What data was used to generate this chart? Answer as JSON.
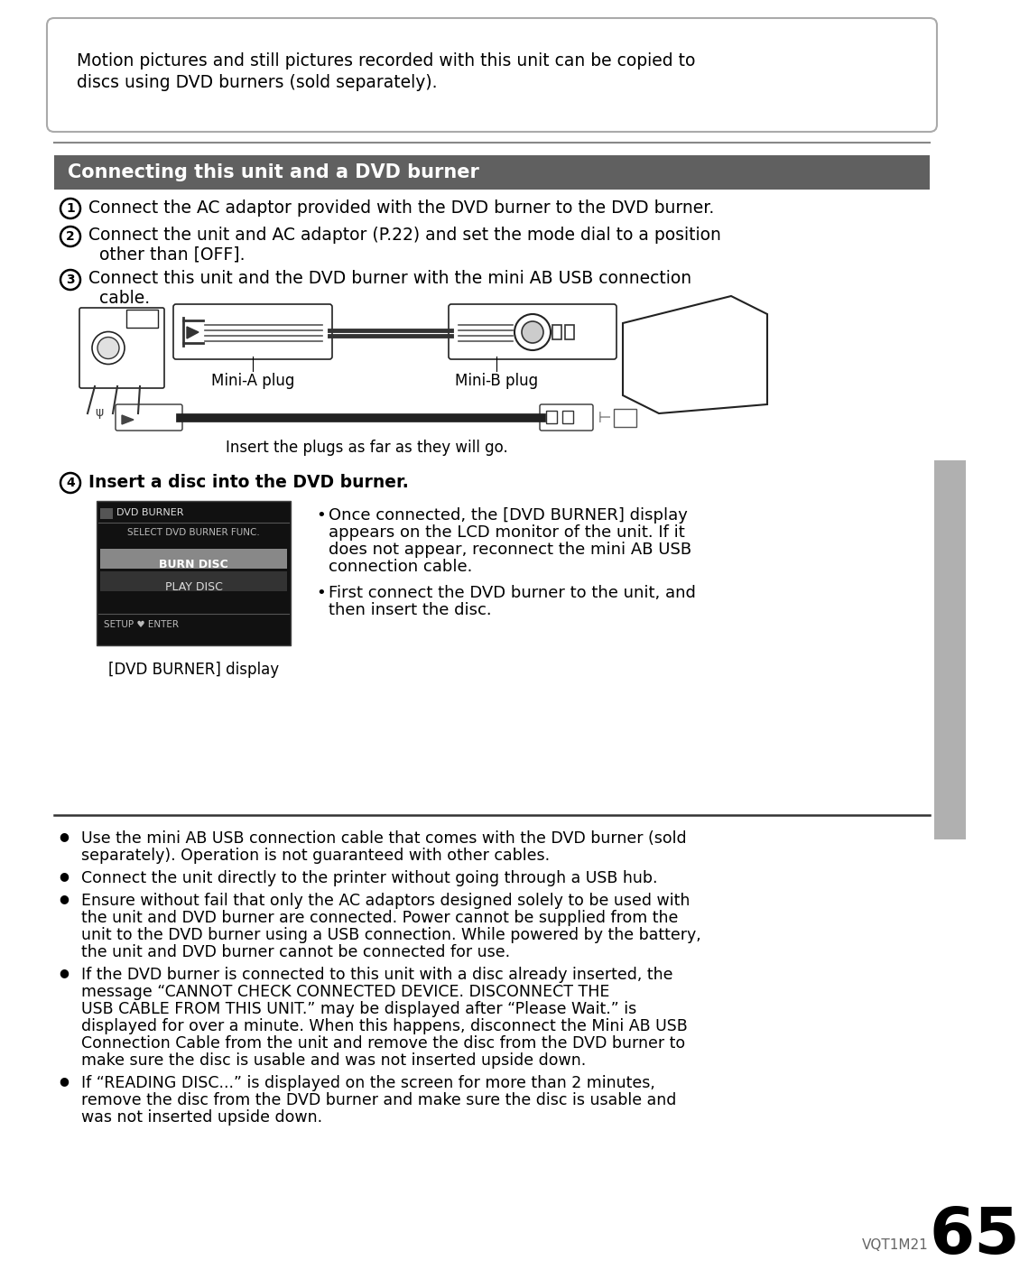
{
  "bg_color": "#ffffff",
  "top_box_text1": "Motion pictures and still pictures recorded with this unit can be copied to",
  "top_box_text2": "discs using DVD burners (sold separately).",
  "section_header": "Connecting this unit and a DVD burner",
  "section_header_bg": "#606060",
  "section_header_color": "#ffffff",
  "step1": "Connect the AC adaptor provided with the DVD burner to the DVD burner.",
  "step2_line1": "Connect the unit and AC adaptor (P.22) and set the mode dial to a position",
  "step2_line2": "other than [OFF].",
  "step3_line1": "Connect this unit and the DVD burner with the mini AB USB connection",
  "step3_line2": "cable.",
  "mini_a_label": "Mini-A plug",
  "mini_b_label": "Mini-B plug",
  "insert_label": "Insert the plugs as far as they will go.",
  "step4": "Insert a disc into the DVD burner.",
  "dvd_burner_label": "[DVD BURNER] display",
  "menu_line1": "DVD BURNER",
  "menu_line2": "SELECT DVD BURNER FUNC.",
  "menu_burn": "BURN DISC",
  "menu_play": "PLAY DISC",
  "menu_setup": "SETUP",
  "menu_enter": "ENTER",
  "bullet1": "Once connected, the [DVD BURNER] display appears on the LCD monitor of the unit. If it does not appear, reconnect the mini AB USB connection cable.",
  "bullet2": "First connect the DVD burner to the unit, and then insert the disc.",
  "note1_line1": "Use the mini AB USB connection cable that comes with the DVD burner (sold",
  "note1_line2": "separately). Operation is not guaranteed with other cables.",
  "note2": "Connect the unit directly to the printer without going through a USB hub.",
  "note3_line1": "Ensure without fail that only the AC adaptors designed solely to be used with",
  "note3_line2": "the unit and DVD burner are connected. Power cannot be supplied from the",
  "note3_line3": "unit to the DVD burner using a USB connection. While powered by the battery,",
  "note3_line4": "the unit and DVD burner cannot be connected for use.",
  "note4_line1": "If the DVD burner is connected to this unit with a disc already inserted, the",
  "note4_line2": "message “CANNOT CHECK CONNECTED DEVICE. DISCONNECT THE",
  "note4_line3": "USB CABLE FROM THIS UNIT.” may be displayed after “Please Wait.” is",
  "note4_line4": "displayed for over a minute. When this happens, disconnect the Mini AB USB",
  "note4_line5": "Connection Cable from the unit and remove the disc from the DVD burner to",
  "note4_line6": "make sure the disc is usable and was not inserted upside down.",
  "note5_line1": "If “READING DISC...” is displayed on the screen for more than 2 minutes,",
  "note5_line2": "remove the disc from the DVD burner and make sure the disc is usable and",
  "note5_line3": "was not inserted upside down.",
  "page_num": "65",
  "vqt": "VQT1M21",
  "sidebar_color": "#b0b0b0"
}
